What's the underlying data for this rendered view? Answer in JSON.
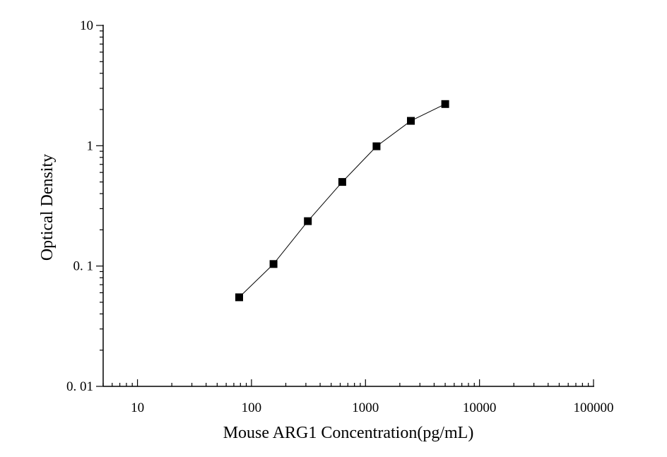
{
  "chart_data": {
    "type": "line",
    "xlabel": "Mouse ARG1 Concentration(pg/mL)",
    "ylabel": "Optical Density",
    "x_scale": "log",
    "y_scale": "log",
    "xlim": [
      5,
      100000
    ],
    "ylim": [
      0.01,
      10
    ],
    "x_ticks": [
      {
        "value": 10,
        "label": "10"
      },
      {
        "value": 100,
        "label": "100"
      },
      {
        "value": 1000,
        "label": "1000"
      },
      {
        "value": 10000,
        "label": "10000"
      },
      {
        "value": 100000,
        "label": "100000"
      }
    ],
    "y_ticks": [
      {
        "value": 0.01,
        "label": "0. 01"
      },
      {
        "value": 0.1,
        "label": "0. 1"
      },
      {
        "value": 1,
        "label": "1"
      },
      {
        "value": 10,
        "label": "10"
      }
    ],
    "grid": false,
    "legend": "none",
    "series": [
      {
        "marker": "square",
        "color": "#000000",
        "x": [
          78,
          156,
          312,
          625,
          1250,
          2500,
          5000
        ],
        "y": [
          0.055,
          0.104,
          0.236,
          0.5,
          0.99,
          1.61,
          2.22
        ]
      }
    ]
  }
}
